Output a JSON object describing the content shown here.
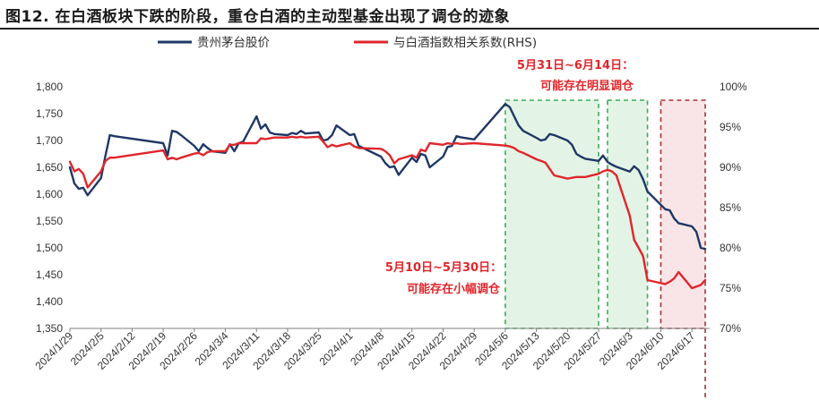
{
  "page_title": "图12. 在白酒板块下跌的阶段，重仓白酒的主动型基金出现了调仓的迹象",
  "chart_data": {
    "type": "line",
    "x_tick_labels": [
      "2024/1/29",
      "2024/2/5",
      "2024/2/12",
      "2024/2/19",
      "2024/2/26",
      "2024/3/4",
      "2024/3/11",
      "2024/3/18",
      "2024/3/25",
      "2024/4/1",
      "2024/4/8",
      "2024/4/15",
      "2024/4/22",
      "2024/4/29",
      "2024/5/6",
      "2024/5/13",
      "2024/5/20",
      "2024/5/27",
      "2024/6/3",
      "2024/6/10",
      "2024/6/17"
    ],
    "y_left": {
      "ticks": [
        "1,350",
        "1,400",
        "1,450",
        "1,500",
        "1,550",
        "1,600",
        "1,650",
        "1,700",
        "1,750",
        "1,800"
      ],
      "lim": [
        1350,
        1800
      ]
    },
    "y_right": {
      "ticks": [
        "70%",
        "75%",
        "80%",
        "85%",
        "90%",
        "95%",
        "100%"
      ],
      "lim": [
        0.7,
        1.0
      ]
    },
    "legend_position": "top",
    "series": [
      {
        "name": "贵州茅台股价",
        "axis": "left",
        "color": "#1f3864",
        "points": [
          [
            "2024/1/29",
            1650
          ],
          [
            "2024/1/30",
            1620
          ],
          [
            "2024/1/31",
            1610
          ],
          [
            "2024/2/1",
            1612
          ],
          [
            "2024/2/2",
            1598
          ],
          [
            "2024/2/5",
            1630
          ],
          [
            "2024/2/6",
            1672
          ],
          [
            "2024/2/7",
            1710
          ],
          [
            "2024/2/8",
            1708
          ],
          [
            "2024/2/19",
            1695
          ],
          [
            "2024/2/20",
            1672
          ],
          [
            "2024/2/21",
            1718
          ],
          [
            "2024/2/22",
            1716
          ],
          [
            "2024/2/23",
            1710
          ],
          [
            "2024/2/26",
            1690
          ],
          [
            "2024/2/27",
            1680
          ],
          [
            "2024/2/28",
            1693
          ],
          [
            "2024/2/29",
            1686
          ],
          [
            "2024/3/1",
            1680
          ],
          [
            "2024/3/4",
            1677
          ],
          [
            "2024/3/5",
            1693
          ],
          [
            "2024/3/6",
            1680
          ],
          [
            "2024/3/7",
            1695
          ],
          [
            "2024/3/8",
            1698
          ],
          [
            "2024/3/11",
            1745
          ],
          [
            "2024/3/12",
            1722
          ],
          [
            "2024/3/13",
            1730
          ],
          [
            "2024/3/14",
            1715
          ],
          [
            "2024/3/15",
            1712
          ],
          [
            "2024/3/18",
            1710
          ],
          [
            "2024/3/19",
            1714
          ],
          [
            "2024/3/20",
            1712
          ],
          [
            "2024/3/21",
            1718
          ],
          [
            "2024/3/22",
            1713
          ],
          [
            "2024/3/25",
            1715
          ],
          [
            "2024/3/26",
            1700
          ],
          [
            "2024/3/27",
            1702
          ],
          [
            "2024/3/28",
            1710
          ],
          [
            "2024/3/29",
            1728
          ],
          [
            "2024/4/1",
            1710
          ],
          [
            "2024/4/2",
            1712
          ],
          [
            "2024/4/3",
            1690
          ],
          [
            "2024/4/8",
            1670
          ],
          [
            "2024/4/9",
            1658
          ],
          [
            "2024/4/10",
            1650
          ],
          [
            "2024/4/11",
            1652
          ],
          [
            "2024/4/12",
            1636
          ],
          [
            "2024/4/15",
            1668
          ],
          [
            "2024/4/16",
            1660
          ],
          [
            "2024/4/17",
            1675
          ],
          [
            "2024/4/18",
            1672
          ],
          [
            "2024/4/19",
            1650
          ],
          [
            "2024/4/22",
            1670
          ],
          [
            "2024/4/23",
            1688
          ],
          [
            "2024/4/24",
            1690
          ],
          [
            "2024/4/25",
            1708
          ],
          [
            "2024/4/26",
            1706
          ],
          [
            "2024/4/29",
            1702
          ],
          [
            "2024/5/6",
            1768
          ],
          [
            "2024/5/7",
            1762
          ],
          [
            "2024/5/8",
            1745
          ],
          [
            "2024/5/9",
            1728
          ],
          [
            "2024/5/10",
            1718
          ],
          [
            "2024/5/13",
            1705
          ],
          [
            "2024/5/14",
            1700
          ],
          [
            "2024/5/15",
            1702
          ],
          [
            "2024/5/16",
            1712
          ],
          [
            "2024/5/17",
            1710
          ],
          [
            "2024/5/20",
            1700
          ],
          [
            "2024/5/21",
            1692
          ],
          [
            "2024/5/22",
            1675
          ],
          [
            "2024/5/23",
            1670
          ],
          [
            "2024/5/24",
            1666
          ],
          [
            "2024/5/27",
            1662
          ],
          [
            "2024/5/28",
            1672
          ],
          [
            "2024/5/29",
            1660
          ],
          [
            "2024/5/30",
            1655
          ],
          [
            "2024/5/31",
            1651
          ],
          [
            "2024/6/3",
            1642
          ],
          [
            "2024/6/4",
            1652
          ],
          [
            "2024/6/5",
            1645
          ],
          [
            "2024/6/6",
            1628
          ],
          [
            "2024/6/7",
            1605
          ],
          [
            "2024/6/11",
            1572
          ],
          [
            "2024/6/12",
            1570
          ],
          [
            "2024/6/13",
            1555
          ],
          [
            "2024/6/14",
            1546
          ],
          [
            "2024/6/17",
            1540
          ],
          [
            "2024/6/18",
            1530
          ],
          [
            "2024/6/19",
            1500
          ],
          [
            "2024/6/20",
            1498
          ]
        ]
      },
      {
        "name": "与白酒指数相关系数(RHS)",
        "axis": "right",
        "color": "#e0262b",
        "points": [
          [
            "2024/1/29",
            0.907
          ],
          [
            "2024/1/30",
            0.895
          ],
          [
            "2024/1/31",
            0.898
          ],
          [
            "2024/2/1",
            0.892
          ],
          [
            "2024/2/2",
            0.875
          ],
          [
            "2024/2/5",
            0.895
          ],
          [
            "2024/2/6",
            0.908
          ],
          [
            "2024/2/7",
            0.912
          ],
          [
            "2024/2/8",
            0.912
          ],
          [
            "2024/2/19",
            0.921
          ],
          [
            "2024/2/20",
            0.91
          ],
          [
            "2024/2/21",
            0.912
          ],
          [
            "2024/2/22",
            0.91
          ],
          [
            "2024/2/23",
            0.912
          ],
          [
            "2024/2/26",
            0.917
          ],
          [
            "2024/2/27",
            0.918
          ],
          [
            "2024/2/28",
            0.915
          ],
          [
            "2024/2/29",
            0.919
          ],
          [
            "2024/3/1",
            0.92
          ],
          [
            "2024/3/4",
            0.92
          ],
          [
            "2024/3/5",
            0.928
          ],
          [
            "2024/3/6",
            0.928
          ],
          [
            "2024/3/7",
            0.93
          ],
          [
            "2024/3/8",
            0.93
          ],
          [
            "2024/3/11",
            0.93
          ],
          [
            "2024/3/12",
            0.936
          ],
          [
            "2024/3/13",
            0.935
          ],
          [
            "2024/3/14",
            0.936
          ],
          [
            "2024/3/15",
            0.937
          ],
          [
            "2024/3/18",
            0.937
          ],
          [
            "2024/3/19",
            0.938
          ],
          [
            "2024/3/20",
            0.937
          ],
          [
            "2024/3/21",
            0.938
          ],
          [
            "2024/3/22",
            0.937
          ],
          [
            "2024/3/25",
            0.938
          ],
          [
            "2024/3/26",
            0.932
          ],
          [
            "2024/3/27",
            0.925
          ],
          [
            "2024/3/28",
            0.928
          ],
          [
            "2024/3/29",
            0.926
          ],
          [
            "2024/4/1",
            0.93
          ],
          [
            "2024/4/2",
            0.926
          ],
          [
            "2024/4/3",
            0.924
          ],
          [
            "2024/4/8",
            0.923
          ],
          [
            "2024/4/9",
            0.92
          ],
          [
            "2024/4/10",
            0.915
          ],
          [
            "2024/4/11",
            0.905
          ],
          [
            "2024/4/12",
            0.91
          ],
          [
            "2024/4/15",
            0.915
          ],
          [
            "2024/4/16",
            0.912
          ],
          [
            "2024/4/17",
            0.922
          ],
          [
            "2024/4/18",
            0.92
          ],
          [
            "2024/4/19",
            0.93
          ],
          [
            "2024/4/22",
            0.928
          ],
          [
            "2024/4/23",
            0.93
          ],
          [
            "2024/4/24",
            0.929
          ],
          [
            "2024/4/25",
            0.93
          ],
          [
            "2024/4/26",
            0.929
          ],
          [
            "2024/4/29",
            0.93
          ],
          [
            "2024/5/6",
            0.927
          ],
          [
            "2024/5/7",
            0.926
          ],
          [
            "2024/5/8",
            0.924
          ],
          [
            "2024/5/9",
            0.92
          ],
          [
            "2024/5/10",
            0.918
          ],
          [
            "2024/5/13",
            0.91
          ],
          [
            "2024/5/14",
            0.908
          ],
          [
            "2024/5/15",
            0.906
          ],
          [
            "2024/5/16",
            0.898
          ],
          [
            "2024/5/17",
            0.89
          ],
          [
            "2024/5/20",
            0.886
          ],
          [
            "2024/5/21",
            0.887
          ],
          [
            "2024/5/22",
            0.888
          ],
          [
            "2024/5/23",
            0.888
          ],
          [
            "2024/5/24",
            0.888
          ],
          [
            "2024/5/27",
            0.892
          ],
          [
            "2024/5/28",
            0.895
          ],
          [
            "2024/5/29",
            0.897
          ],
          [
            "2024/5/30",
            0.895
          ],
          [
            "2024/5/31",
            0.89
          ],
          [
            "2024/6/3",
            0.84
          ],
          [
            "2024/6/4",
            0.81
          ],
          [
            "2024/6/5",
            0.8
          ],
          [
            "2024/6/6",
            0.79
          ],
          [
            "2024/6/7",
            0.76
          ],
          [
            "2024/6/11",
            0.755
          ],
          [
            "2024/6/12",
            0.758
          ],
          [
            "2024/6/13",
            0.762
          ],
          [
            "2024/6/14",
            0.77
          ],
          [
            "2024/6/17",
            0.75
          ],
          [
            "2024/6/18",
            0.752
          ],
          [
            "2024/6/19",
            0.754
          ],
          [
            "2024/6/20",
            0.76
          ]
        ]
      }
    ],
    "highlight_periods": [
      {
        "label": "5月10日~5月30日：可能存在小幅调仓",
        "start": "2024/5/6",
        "end": "2024/5/27",
        "color": "#3aae55",
        "fill": "#e3f4e6"
      },
      {
        "label": "5月31日~6月14日：可能存在明显调仓",
        "start": "2024/5/29",
        "end": "2024/6/7",
        "color": "#3aae55",
        "fill": "#e3f4e6"
      },
      {
        "label": "",
        "start": "2024/6/10",
        "end": "2024/6/20",
        "color": "#a0333a",
        "fill": "#f9e5e7"
      }
    ],
    "annotations": [
      {
        "lines": [
          "5月10日~5月30日：",
          "可能存在小幅调仓"
        ]
      },
      {
        "lines": [
          "5月31日~6月14日：",
          "可能存在明显调仓"
        ]
      }
    ]
  }
}
